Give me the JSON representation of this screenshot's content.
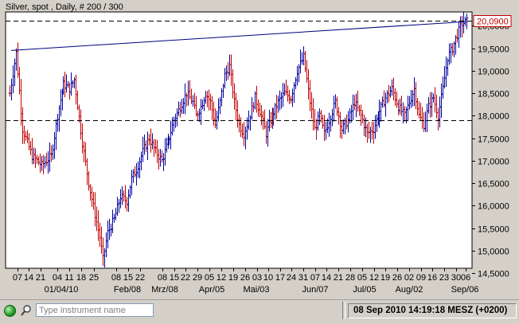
{
  "window": {
    "title": "Silver, spot , Daily, # 200 / 300"
  },
  "chart_data": {
    "type": "ohlc",
    "instrument": "Silver, spot",
    "period": "Daily",
    "bars_shown": "200 / 300",
    "ylim": [
      14.5,
      20.2
    ],
    "y_ticks": [
      "20,0000",
      "19,5000",
      "19,0000",
      "18,5000",
      "18,0000",
      "17,5000",
      "17,0000",
      "16,5000",
      "16,0000",
      "15,5000",
      "15,0000",
      "14,5000"
    ],
    "y_tick_values": [
      20.0,
      19.5,
      19.0,
      18.5,
      18.0,
      17.5,
      17.0,
      16.5,
      16.0,
      15.5,
      15.0,
      14.5
    ],
    "x_day_labels": [
      "07",
      "14",
      "21",
      "04",
      "11",
      "18",
      "25",
      "08",
      "15",
      "22",
      "08",
      "15",
      "22",
      "29",
      "05",
      "12",
      "19",
      "26",
      "03",
      "10",
      "17",
      "24",
      "31",
      "07",
      "14",
      "21",
      "28",
      "05",
      "12",
      "19",
      "26",
      "02",
      "09",
      "16",
      "23",
      "30",
      "06"
    ],
    "x_month_labels": [
      "01/04/10",
      "Feb/08",
      "Mrz/08",
      "Apr/05",
      "Mai/03",
      "Jun/07",
      "Jul/05",
      "Aug/02",
      "Sep/06"
    ],
    "last_price_label": "20,0900",
    "last_price": 20.09,
    "horizontal_line": {
      "value": 17.9,
      "style": "dashed"
    },
    "top_dashed_line": {
      "value": 20.09,
      "style": "dashed"
    },
    "trendline": {
      "start": {
        "bar": 1,
        "value": 19.45
      },
      "end": {
        "bar": 199,
        "value": 20.09
      }
    },
    "close_path": [
      [
        0,
        18.5
      ],
      [
        4,
        19.4
      ],
      [
        8,
        17.7
      ],
      [
        14,
        17.1
      ],
      [
        20,
        16.9
      ],
      [
        26,
        17.1
      ],
      [
        30,
        18.0
      ],
      [
        34,
        18.7
      ],
      [
        38,
        18.6
      ],
      [
        41,
        18.8
      ],
      [
        46,
        17.4
      ],
      [
        50,
        16.5
      ],
      [
        54,
        15.8
      ],
      [
        57,
        15.3
      ],
      [
        59,
        14.8
      ],
      [
        62,
        15.4
      ],
      [
        66,
        15.7
      ],
      [
        70,
        16.2
      ],
      [
        74,
        16.1
      ],
      [
        77,
        16.6
      ],
      [
        80,
        16.8
      ],
      [
        84,
        17.2
      ],
      [
        88,
        17.5
      ],
      [
        92,
        17.2
      ],
      [
        96,
        17.0
      ],
      [
        100,
        17.4
      ],
      [
        104,
        17.9
      ],
      [
        108,
        18.2
      ],
      [
        112,
        18.5
      ],
      [
        116,
        18.3
      ],
      [
        118,
        18.0
      ],
      [
        121,
        18.2
      ],
      [
        124,
        18.5
      ],
      [
        127,
        18.3
      ],
      [
        130,
        17.8
      ],
      [
        133,
        18.3
      ],
      [
        136,
        18.9
      ],
      [
        139,
        19.1
      ],
      [
        142,
        18.3
      ],
      [
        145,
        17.8
      ],
      [
        148,
        17.6
      ],
      [
        151,
        17.9
      ],
      [
        155,
        18.4
      ],
      [
        158,
        18.1
      ],
      [
        162,
        17.6
      ],
      [
        166,
        18.0
      ],
      [
        170,
        18.3
      ],
      [
        174,
        18.5
      ],
      [
        178,
        18.4
      ],
      [
        182,
        19.0
      ],
      [
        186,
        19.3
      ],
      [
        190,
        18.3
      ],
      [
        193,
        17.7
      ],
      [
        196,
        18.0
      ],
      [
        199,
        17.6
      ],
      [
        202,
        17.9
      ],
      [
        206,
        18.3
      ],
      [
        210,
        17.7
      ],
      [
        214,
        17.9
      ],
      [
        218,
        18.3
      ],
      [
        222,
        18.0
      ],
      [
        226,
        17.6
      ],
      [
        230,
        17.7
      ],
      [
        234,
        18.1
      ],
      [
        238,
        18.4
      ],
      [
        242,
        18.6
      ],
      [
        246,
        18.2
      ],
      [
        250,
        18.0
      ],
      [
        253,
        18.3
      ],
      [
        256,
        18.6
      ],
      [
        259,
        18.0
      ],
      [
        262,
        17.8
      ],
      [
        265,
        18.2
      ],
      [
        268,
        18.4
      ],
      [
        271,
        18.0
      ],
      [
        274,
        18.6
      ],
      [
        277,
        19.3
      ],
      [
        280,
        19.5
      ],
      [
        283,
        19.8
      ],
      [
        286,
        20.05
      ],
      [
        289,
        20.09
      ]
    ]
  },
  "statusbar": {
    "search_placeholder": "Type instrument name",
    "clock": "08 Sep 2010 14:19:18  MESZ (+0200)"
  },
  "colors": {
    "up": "#0000a0",
    "down": "#c00000",
    "trendline": "#000080",
    "last_price_box": "#c00000",
    "status_light": "#1f9a1f"
  }
}
